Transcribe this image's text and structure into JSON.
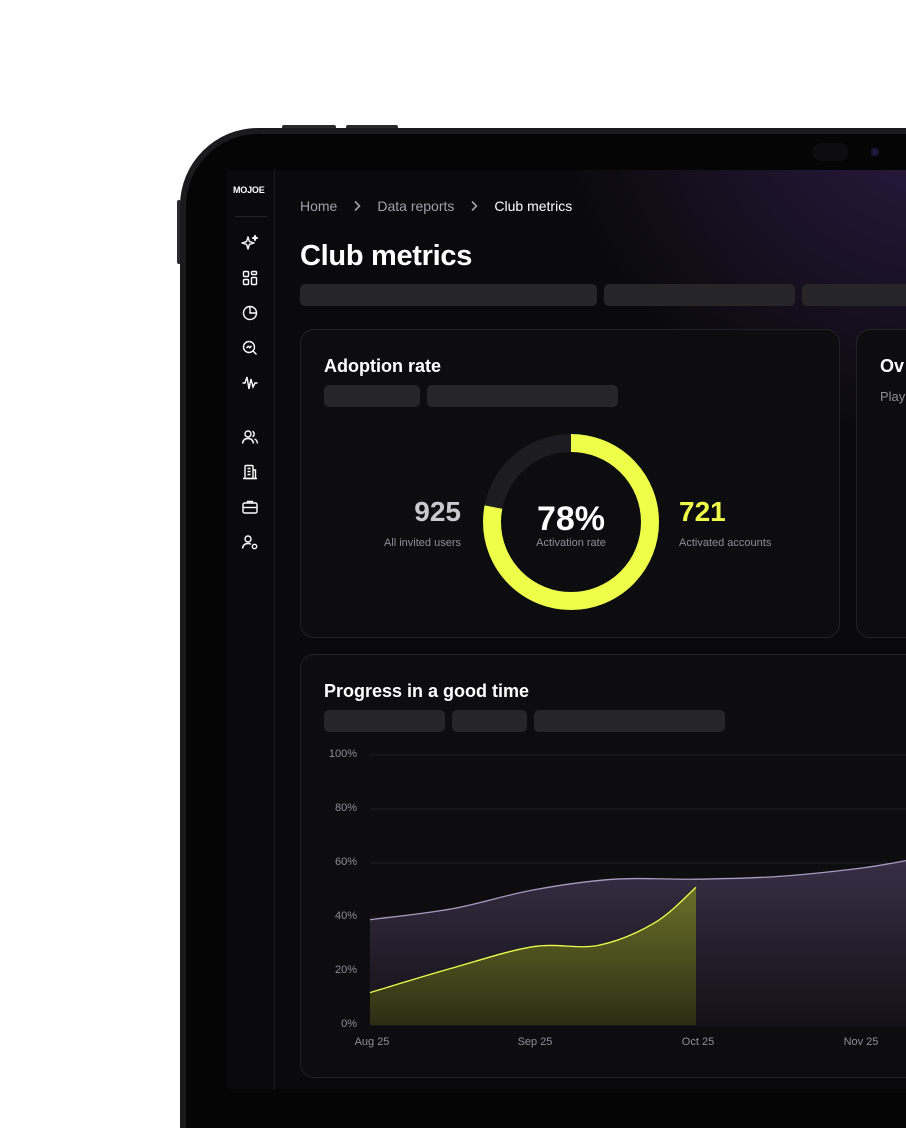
{
  "app": {
    "logo_text": "MOJOE"
  },
  "sidebar": {
    "items": [
      {
        "icon": "sparkles-icon"
      },
      {
        "icon": "dashboard-icon"
      },
      {
        "icon": "pie-chart-icon"
      },
      {
        "icon": "search-analytics-icon"
      },
      {
        "icon": "waveform-icon"
      },
      {
        "icon": "users-icon"
      },
      {
        "icon": "building-icon"
      },
      {
        "icon": "briefcase-icon"
      },
      {
        "icon": "user-settings-icon"
      }
    ]
  },
  "breadcrumb": {
    "items": [
      "Home",
      "Data reports",
      "Club metrics"
    ]
  },
  "page": {
    "title": "Club metrics"
  },
  "adoption": {
    "title": "Adoption rate",
    "center_value": "78%",
    "center_label": "Activation rate",
    "left_value": "925",
    "left_label": "All invited users",
    "right_value": "721",
    "right_label": "Activated accounts",
    "rate_fraction": 0.78
  },
  "overview_card": {
    "title": "Ov",
    "subtitle": "Play"
  },
  "progress_card": {
    "title": "Progress in a good time"
  },
  "colors": {
    "accent": "#EEFF4A",
    "background": "#0A0A0C",
    "muted": "#8E8E96",
    "purple_series": "#A89BC0"
  },
  "chart_data": {
    "type": "area",
    "categories": [
      "Aug 25",
      "Sep 25",
      "Oct 25",
      "Nov 25"
    ],
    "y_tick_labels": [
      "100%",
      "80%",
      "60%",
      "40%",
      "20%",
      "0%"
    ],
    "ylim": [
      0,
      100
    ],
    "grid": true,
    "series": [
      {
        "color": "#A89BC0",
        "points": [
          [
            0,
            39
          ],
          [
            0.5,
            43
          ],
          [
            1,
            50
          ],
          [
            1.5,
            54
          ],
          [
            2,
            54
          ],
          [
            2.5,
            55
          ],
          [
            3,
            58
          ],
          [
            3.3,
            61
          ]
        ]
      },
      {
        "color": "#EEFF4A",
        "points": [
          [
            0,
            12
          ],
          [
            0.5,
            21
          ],
          [
            1,
            29
          ],
          [
            1.4,
            29.5
          ],
          [
            1.75,
            38
          ],
          [
            2,
            51
          ]
        ]
      }
    ]
  }
}
